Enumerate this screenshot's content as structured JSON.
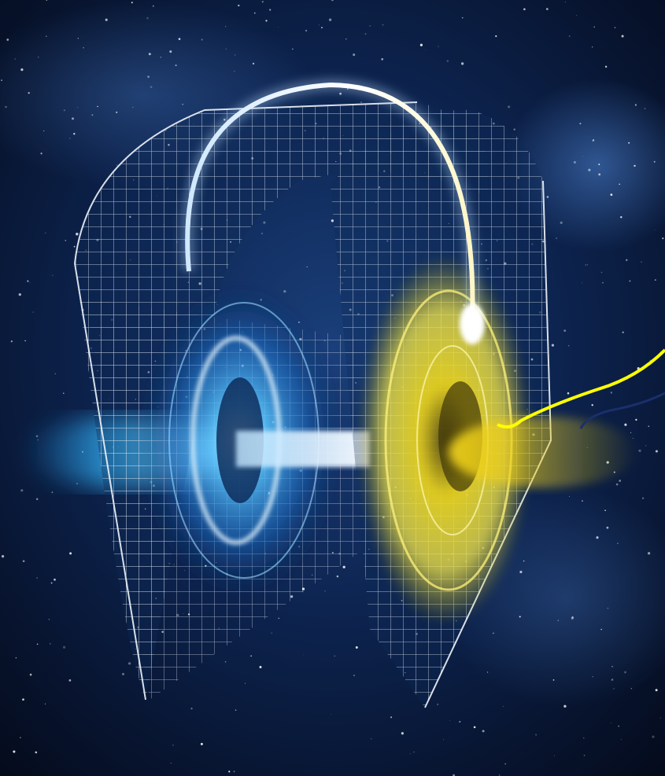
{
  "scene": {
    "subject": "wormhole-illustration",
    "colors": {
      "space_dark": "#040a1a",
      "space_blue": "#12336b",
      "grid": "#e8eef7",
      "mouth_blue": "#2fa8ff",
      "mouth_yellow": "#f2df2a",
      "arc": "#ffffff",
      "annotation_yellow": "#ffff00",
      "annotation_navy": "#1a2f6b"
    },
    "elements": {
      "left_mouth": "blue-vortex",
      "right_mouth": "yellow-vortex",
      "bridge": "spacetime-tunnel-arc",
      "annotations": [
        "yellow-line",
        "navy-line"
      ]
    }
  }
}
